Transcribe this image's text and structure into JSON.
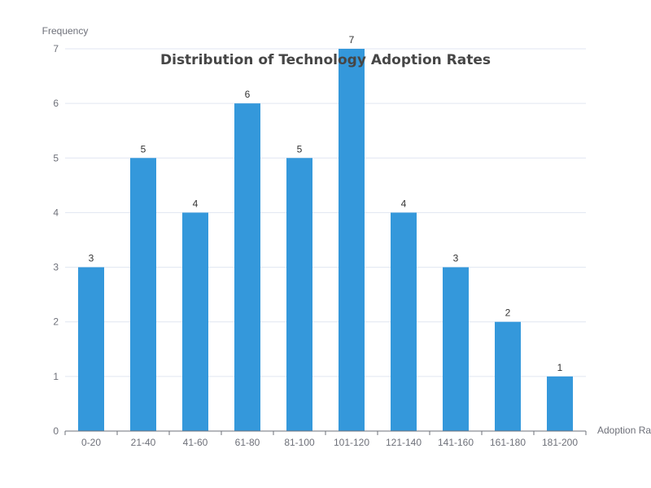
{
  "chart_data": {
    "type": "bar",
    "title": "Distribution of Technology Adoption Rates",
    "xlabel": "Adoption Rate",
    "ylabel": "Frequency",
    "categories": [
      "0-20",
      "21-40",
      "41-60",
      "61-80",
      "81-100",
      "101-120",
      "121-140",
      "141-160",
      "161-180",
      "181-200"
    ],
    "values": [
      3,
      5,
      4,
      6,
      5,
      7,
      4,
      3,
      2,
      1
    ],
    "ylim": [
      0,
      7
    ],
    "yticks": [
      0,
      1,
      2,
      3,
      4,
      5,
      6,
      7
    ],
    "grid": true,
    "bar_color": "#3498db",
    "show_data_labels": true
  }
}
